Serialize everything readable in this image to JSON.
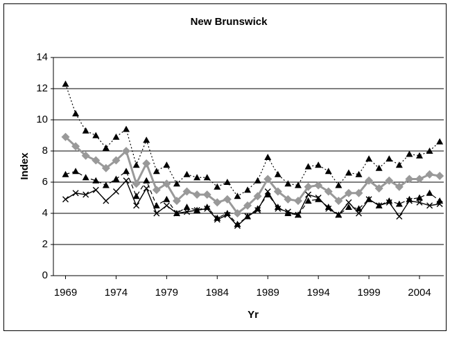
{
  "chart_data": {
    "type": "line",
    "title": "New Brunswick",
    "x_label": "Yr",
    "y_label": "Index",
    "x": [
      1969,
      1970,
      1971,
      1972,
      1973,
      1974,
      1975,
      1976,
      1977,
      1978,
      1979,
      1980,
      1981,
      1982,
      1983,
      1984,
      1985,
      1986,
      1987,
      1988,
      1989,
      1990,
      1991,
      1992,
      1993,
      1994,
      1995,
      1996,
      1997,
      1998,
      1999,
      2000,
      2001,
      2002,
      2003,
      2004,
      2005,
      2006
    ],
    "xlim": [
      1967.8,
      2006.4
    ],
    "xticks": [
      1969,
      1974,
      1979,
      1984,
      1989,
      1994,
      1999,
      2004
    ],
    "ylim": [
      0,
      14
    ],
    "yticks": [
      0,
      2,
      4,
      6,
      8,
      10,
      12,
      14
    ],
    "grid": true,
    "series": [
      {
        "color": "#000000",
        "marker": "triangle",
        "dash": "2,3",
        "width": 1.2,
        "values": [
          12.3,
          10.4,
          9.3,
          9.0,
          8.2,
          8.9,
          9.4,
          7.1,
          8.7,
          6.7,
          7.1,
          5.9,
          6.5,
          6.3,
          6.3,
          5.7,
          6.0,
          5.1,
          5.5,
          6.1,
          7.6,
          6.5,
          5.9,
          5.8,
          7.0,
          7.1,
          6.7,
          5.8,
          6.6,
          6.5,
          7.5,
          6.9,
          7.5,
          7.1,
          7.8,
          7.7,
          8.0,
          8.6
        ]
      },
      {
        "color": "#999999",
        "marker": "diamond",
        "dash": "none",
        "width": 3,
        "values": [
          8.9,
          8.3,
          7.7,
          7.4,
          6.9,
          7.4,
          8.0,
          5.9,
          7.2,
          5.5,
          5.9,
          4.8,
          5.4,
          5.2,
          5.2,
          4.7,
          4.9,
          4.0,
          4.5,
          5.1,
          6.2,
          5.4,
          4.9,
          4.8,
          5.7,
          5.8,
          5.4,
          4.8,
          5.3,
          5.3,
          6.1,
          5.6,
          6.1,
          5.7,
          6.2,
          6.2,
          6.5,
          6.4
        ]
      },
      {
        "color": "#000000",
        "marker": "triangle",
        "dash": "6,4",
        "width": 1.2,
        "values": [
          6.5,
          6.7,
          6.3,
          6.1,
          5.8,
          6.2,
          6.7,
          5.1,
          6.1,
          4.5,
          4.9,
          4.0,
          4.4,
          4.2,
          4.4,
          3.7,
          4.0,
          3.3,
          3.8,
          4.3,
          5.2,
          4.4,
          4.0,
          3.9,
          4.8,
          4.9,
          4.4,
          3.9,
          4.4,
          4.3,
          4.9,
          4.5,
          4.8,
          4.6,
          4.9,
          5.0,
          5.3,
          4.8
        ]
      },
      {
        "color": "#000000",
        "marker": "x",
        "dash": "none",
        "width": 1.4,
        "values": [
          4.9,
          5.3,
          5.2,
          5.5,
          4.8,
          5.4,
          6.1,
          4.5,
          5.6,
          4.0,
          4.5,
          4.0,
          4.1,
          4.2,
          4.3,
          3.6,
          3.9,
          3.2,
          3.8,
          4.2,
          5.4,
          4.3,
          4.1,
          3.9,
          5.2,
          5.0,
          4.3,
          3.9,
          4.7,
          4.0,
          4.9,
          4.5,
          4.7,
          3.8,
          4.8,
          4.7,
          4.5,
          4.6
        ]
      }
    ]
  }
}
